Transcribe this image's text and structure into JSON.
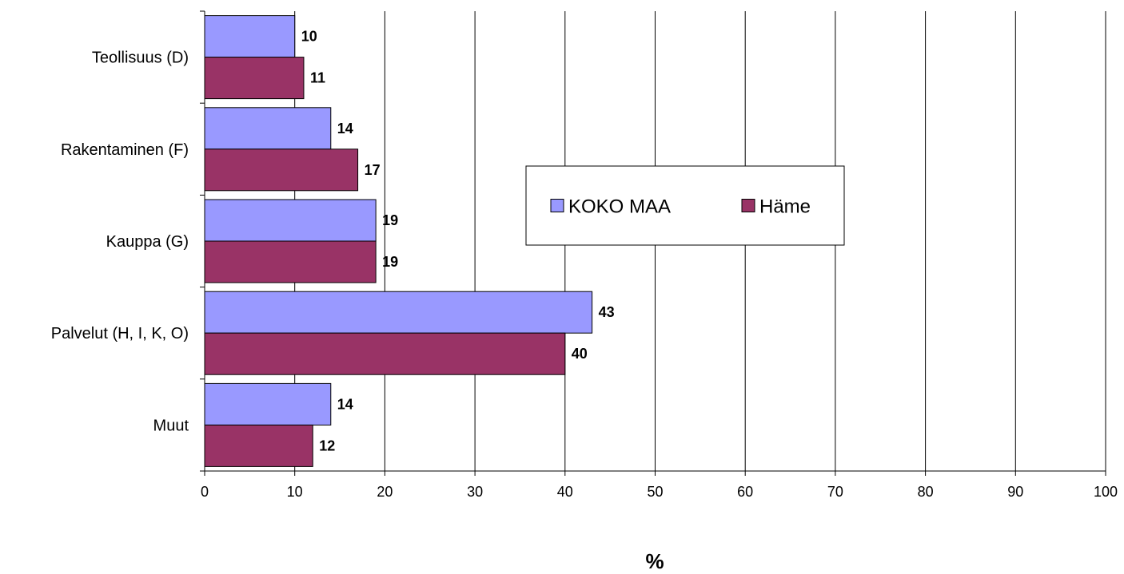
{
  "chart_data": {
    "type": "bar",
    "orientation": "horizontal",
    "categories": [
      "Teollisuus (D)",
      "Rakentaminen (F)",
      "Kauppa (G)",
      "Palvelut (H, I, K, O)",
      "Muut"
    ],
    "series": [
      {
        "name": "KOKO MAA",
        "values": [
          10,
          14,
          19,
          43,
          14
        ],
        "color": "#9999ff"
      },
      {
        "name": "Häme",
        "values": [
          11,
          17,
          19,
          40,
          12
        ],
        "color": "#993366"
      }
    ],
    "xlabel": "%",
    "ylabel": "",
    "xlim": [
      0,
      100
    ],
    "xticks": [
      "0",
      "10",
      "20",
      "30",
      "40",
      "50",
      "60",
      "70",
      "80",
      "90",
      "100"
    ],
    "grid": "vertical",
    "legend_position": "center-right"
  }
}
